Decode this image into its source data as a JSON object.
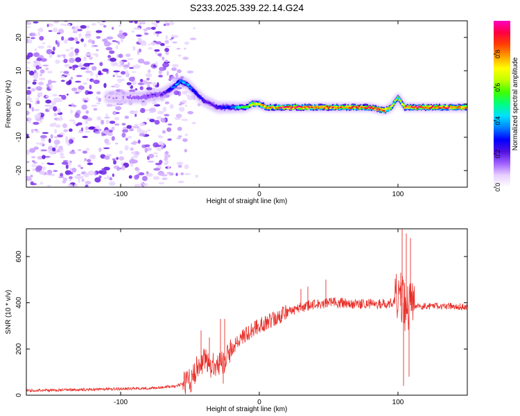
{
  "title": "S233.2025.339.22.14.G24",
  "chart_data": [
    {
      "type": "heatmap",
      "name": "spectrogram",
      "xlabel": "Height of straight line (km)",
      "ylabel": "Frequency (Hz)",
      "xlim": [
        -168,
        150
      ],
      "ylim": [
        -25,
        25
      ],
      "xticks": [
        -100,
        0,
        100
      ],
      "xtick_labels": [
        "-100",
        "0",
        "100"
      ],
      "yticks": [
        -20,
        -10,
        0,
        10,
        20
      ],
      "ytick_labels": [
        "-20",
        "-10",
        "0",
        "10",
        "20"
      ],
      "colorbar": {
        "label": "Normalized spectral amplitude",
        "range": [
          0,
          1
        ],
        "ticks": [
          0,
          0.2,
          0.4,
          0.6,
          0.8
        ],
        "tick_labels": [
          "0.0",
          "0.2",
          "0.4",
          "0.6",
          "0.8"
        ],
        "colors": [
          "#ffffff",
          "#e8d0ff",
          "#a060ff",
          "#5010e0",
          "#0000ff",
          "#0080ff",
          "#00e0ff",
          "#00ff80",
          "#40ff00",
          "#c0ff00",
          "#ffff00",
          "#ffa000",
          "#ff4000",
          "#ff0040",
          "#ff00c0"
        ]
      },
      "ridge": {
        "x": [
          -100,
          -85,
          -70,
          -62,
          -57,
          -52,
          -45,
          -40,
          -35,
          -30,
          -25,
          -20,
          -15,
          -10,
          -5,
          0,
          5,
          10,
          20,
          40,
          60,
          80,
          90,
          95,
          100,
          105,
          110,
          130,
          150
        ],
        "y": [
          2,
          2,
          3,
          5,
          7,
          6,
          3,
          1,
          0,
          -1,
          -1,
          -1,
          -1,
          -1,
          0,
          0,
          -1,
          -1,
          -1,
          -1,
          -1,
          -1,
          -2,
          -1,
          2,
          -1,
          -1,
          -1,
          -1
        ],
        "amplitude": [
          0.1,
          0.15,
          0.2,
          0.35,
          0.45,
          0.4,
          0.3,
          0.25,
          0.2,
          0.25,
          0.3,
          0.35,
          0.5,
          0.6,
          0.7,
          0.75,
          0.8,
          0.85,
          0.95,
          0.9,
          0.85,
          0.9,
          0.9,
          0.7,
          0.6,
          0.85,
          0.9,
          0.9,
          0.85
        ]
      },
      "noise_region_x": [
        -168,
        -70
      ]
    },
    {
      "type": "line",
      "name": "snr",
      "xlabel": "Height of straight line (km)",
      "ylabel": "SNR (10 * v/v)",
      "xlim": [
        -168,
        150
      ],
      "ylim": [
        0,
        720
      ],
      "xticks": [
        -100,
        0,
        100
      ],
      "xtick_labels": [
        "-100",
        "0",
        "100"
      ],
      "yticks": [
        0,
        200,
        400,
        600
      ],
      "ytick_labels": [
        "0",
        "200",
        "400",
        "600"
      ],
      "color": "#e8302a",
      "trend": {
        "x": [
          -168,
          -120,
          -80,
          -60,
          -50,
          -45,
          -40,
          -35,
          -30,
          -25,
          -20,
          -15,
          -10,
          -5,
          0,
          10,
          20,
          30,
          40,
          50,
          60,
          70,
          80,
          90,
          95,
          100,
          103,
          105,
          108,
          110,
          120,
          130,
          140,
          150
        ],
        "y": [
          20,
          25,
          30,
          40,
          60,
          120,
          150,
          130,
          140,
          150,
          200,
          230,
          260,
          280,
          300,
          330,
          360,
          380,
          395,
          400,
          400,
          395,
          395,
          395,
          400,
          420,
          420,
          380,
          390,
          390,
          385,
          385,
          385,
          380
        ]
      },
      "spikes": [
        {
          "x": -42,
          "y": 280
        },
        {
          "x": -36,
          "y": 250
        },
        {
          "x": -28,
          "y": 330
        },
        {
          "x": -26,
          "y": 50
        },
        {
          "x": -25,
          "y": 330
        },
        {
          "x": 30,
          "y": 460
        },
        {
          "x": 35,
          "y": 470
        },
        {
          "x": 48,
          "y": 500
        },
        {
          "x": 102,
          "y": 530
        },
        {
          "x": 103,
          "y": 720
        },
        {
          "x": 104,
          "y": 40
        },
        {
          "x": 106,
          "y": 700
        },
        {
          "x": 108,
          "y": 80
        },
        {
          "x": 109,
          "y": 680
        }
      ]
    }
  ]
}
